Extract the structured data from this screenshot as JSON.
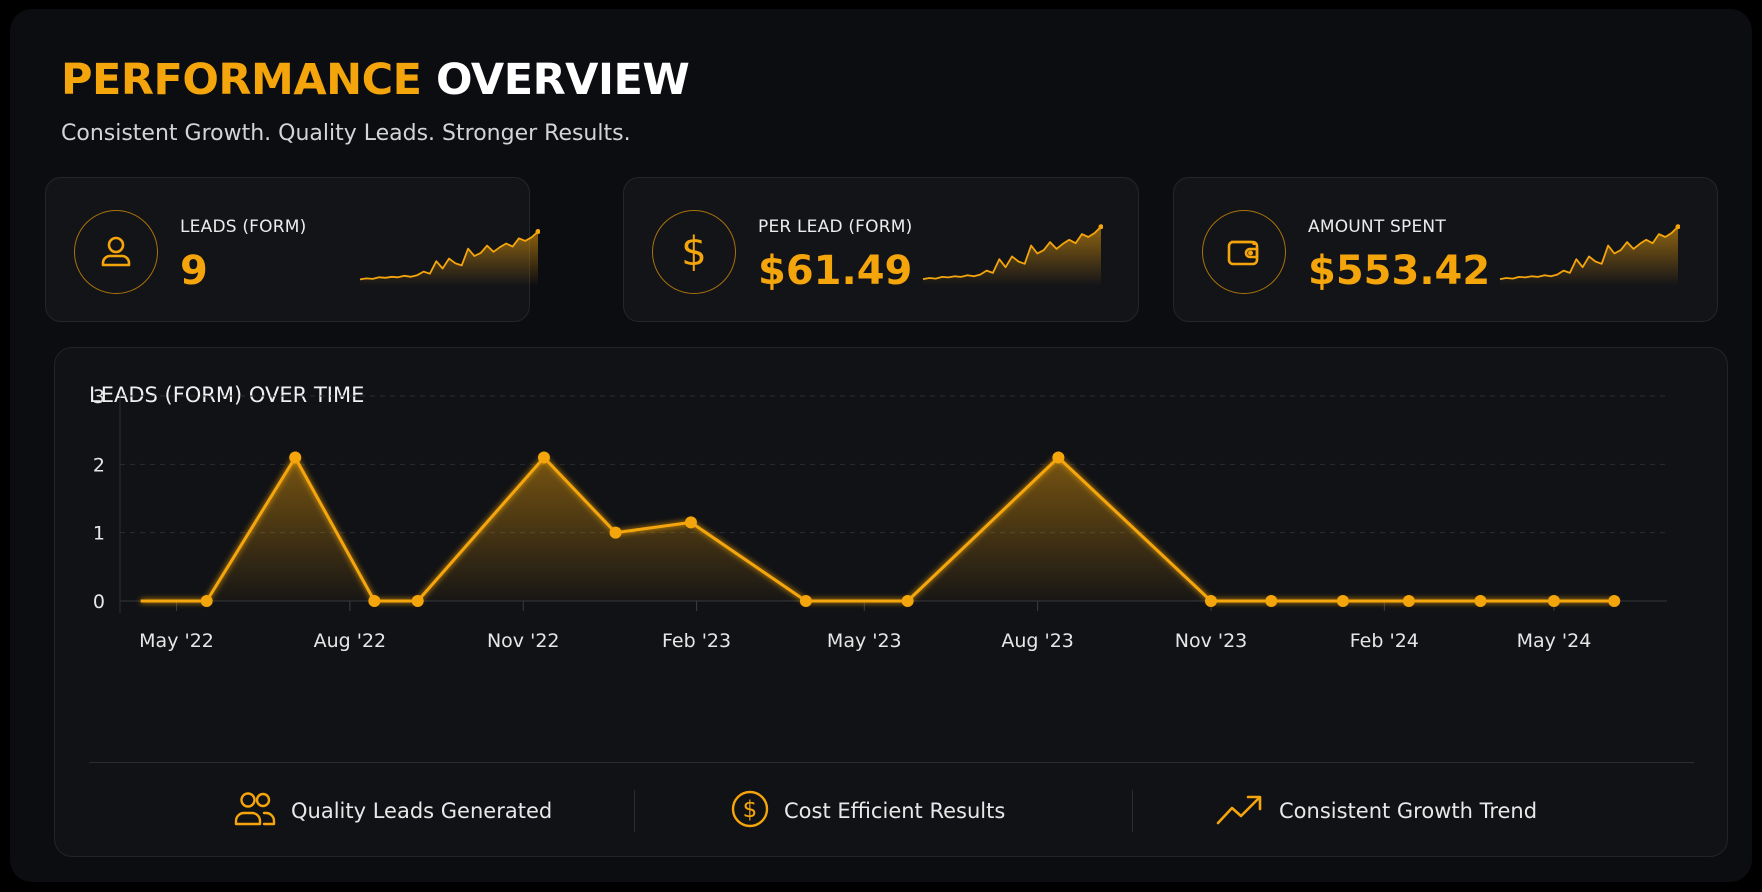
{
  "header": {
    "title_accent": "PERFORMANCE",
    "title_rest": "OVERVIEW",
    "subtitle": "Consistent Growth. Quality Leads. Stronger Results."
  },
  "colors": {
    "accent": "#f5a50c",
    "background": "#0c0d10",
    "card": "#131418"
  },
  "kpis": [
    {
      "label": "LEADS (FORM)",
      "value": "9",
      "icon": "person-icon"
    },
    {
      "label": "PER LEAD (FORM)",
      "value": "$61.49",
      "icon": "dollar-icon"
    },
    {
      "label": "AMOUNT SPENT",
      "value": "$553.42",
      "icon": "wallet-icon"
    }
  ],
  "chart_data": {
    "type": "area",
    "title": "LEADS (FORM) OVER TIME",
    "xlabel": "",
    "ylabel": "",
    "ylim": [
      0,
      3
    ],
    "yticks": [
      "0",
      "1",
      "2",
      "3"
    ],
    "xticks": [
      "May '22",
      "Aug '22",
      "Nov '22",
      "Feb '23",
      "May '23",
      "Aug '23",
      "Nov '23",
      "Feb '24",
      "May '24"
    ],
    "grid": true,
    "series": [
      {
        "x": [
          "2022-04-12",
          "2022-05-17",
          "2022-07-03",
          "2022-08-14",
          "2022-09-06",
          "2022-11-12",
          "2022-12-20",
          "2023-01-29",
          "2023-03-31",
          "2023-05-24",
          "2023-08-12",
          "2023-11-01",
          "2023-12-03",
          "2024-01-10",
          "2024-02-14",
          "2024-03-23",
          "2024-05-01",
          "2024-06-02"
        ],
        "y": [
          0,
          0,
          2.1,
          0,
          0,
          2.1,
          1.0,
          1.15,
          0,
          0,
          2.1,
          0,
          0,
          0,
          0,
          0,
          0,
          0
        ],
        "markers": [
          false,
          true,
          true,
          true,
          true,
          true,
          true,
          true,
          true,
          true,
          true,
          true,
          true,
          true,
          true,
          true,
          true,
          true
        ]
      }
    ]
  },
  "features": [
    {
      "label": "Quality Leads Generated",
      "icon": "users-icon"
    },
    {
      "label": "Cost Efficient Results",
      "icon": "dollar-circle-icon"
    },
    {
      "label": "Consistent Growth Trend",
      "icon": "trend-up-icon"
    }
  ]
}
